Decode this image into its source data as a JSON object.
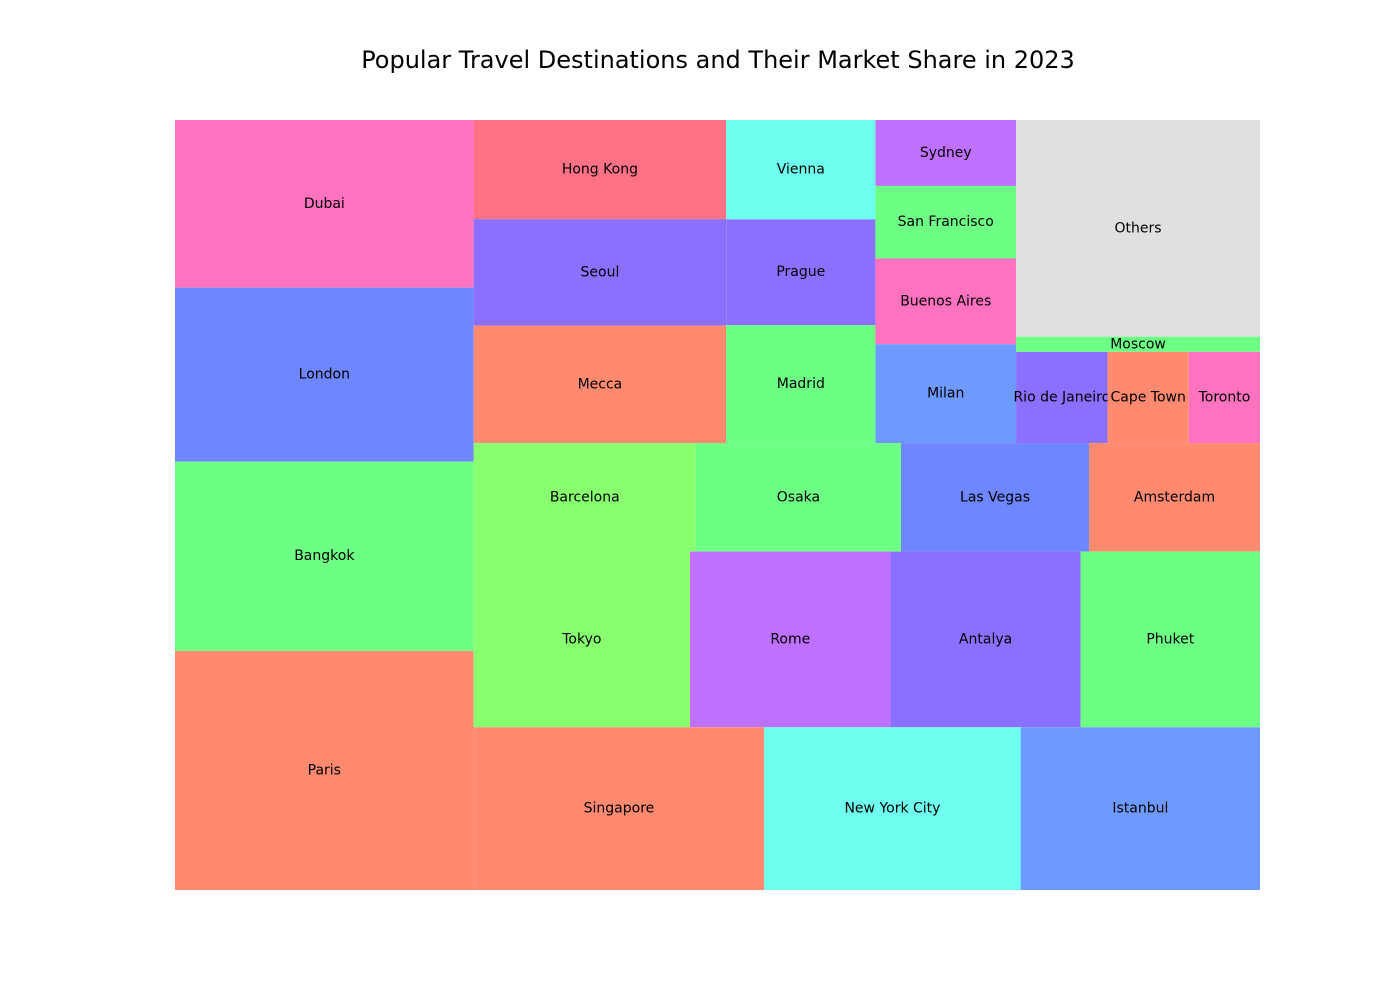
{
  "chart_data": {
    "type": "treemap",
    "title": "Popular Travel Destinations and Their Market Share in 2023",
    "colors": {
      "salmon": "#ff8a70",
      "green": "#6eff85",
      "blue": "#6e86ff",
      "pink": "#ff72c0",
      "lime": "#87ff6e",
      "purple": "#8b70ff",
      "red": "#ff7285",
      "cyan": "#6effee",
      "violet": "#c070ff",
      "lightblue": "#6e9aff",
      "gray": "#e0e0e0"
    },
    "items": [
      {
        "label": "Paris",
        "value": 7.7,
        "color": "salmon"
      },
      {
        "label": "Bangkok",
        "value": 6.1,
        "color": "green"
      },
      {
        "label": "London",
        "value": 5.6,
        "color": "blue"
      },
      {
        "label": "Dubai",
        "value": 5.4,
        "color": "pink"
      },
      {
        "label": "Singapore",
        "value": 5.1,
        "color": "salmon"
      },
      {
        "label": "New York City",
        "value": 4.5,
        "color": "cyan"
      },
      {
        "label": "Istanbul",
        "value": 4.2,
        "color": "lightblue"
      },
      {
        "label": "Tokyo",
        "value": 4.1,
        "color": "lime"
      },
      {
        "label": "Rome",
        "value": 3.8,
        "color": "violet"
      },
      {
        "label": "Antalya",
        "value": 3.6,
        "color": "purple"
      },
      {
        "label": "Phuket",
        "value": 3.4,
        "color": "green"
      },
      {
        "label": "Mecca",
        "value": 3.2,
        "color": "salmon"
      },
      {
        "label": "Seoul",
        "value": 2.9,
        "color": "purple"
      },
      {
        "label": "Hong Kong",
        "value": 2.7,
        "color": "red"
      },
      {
        "label": "Barcelona",
        "value": 2.6,
        "color": "lime"
      },
      {
        "label": "Osaka",
        "value": 2.4,
        "color": "green"
      },
      {
        "label": "Las Vegas",
        "value": 2.2,
        "color": "blue"
      },
      {
        "label": "Amsterdam",
        "value": 2.0,
        "color": "salmon"
      },
      {
        "label": "Madrid",
        "value": 1.9,
        "color": "green"
      },
      {
        "label": "Prague",
        "value": 1.7,
        "color": "purple"
      },
      {
        "label": "Vienna",
        "value": 1.6,
        "color": "cyan"
      },
      {
        "label": "Milan",
        "value": 1.5,
        "color": "lightblue"
      },
      {
        "label": "Buenos Aires",
        "value": 1.3,
        "color": "pink"
      },
      {
        "label": "San Francisco",
        "value": 1.1,
        "color": "green"
      },
      {
        "label": "Sydney",
        "value": 1.0,
        "color": "violet"
      },
      {
        "label": "Rio de Janeiro",
        "value": 0.9,
        "color": "purple"
      },
      {
        "label": "Cape Town",
        "value": 0.8,
        "color": "salmon"
      },
      {
        "label": "Toronto",
        "value": 0.7,
        "color": "pink"
      },
      {
        "label": "Moscow",
        "value": 0.4,
        "color": "green"
      },
      {
        "label": "Others",
        "value": 5.7,
        "color": "gray"
      }
    ]
  }
}
